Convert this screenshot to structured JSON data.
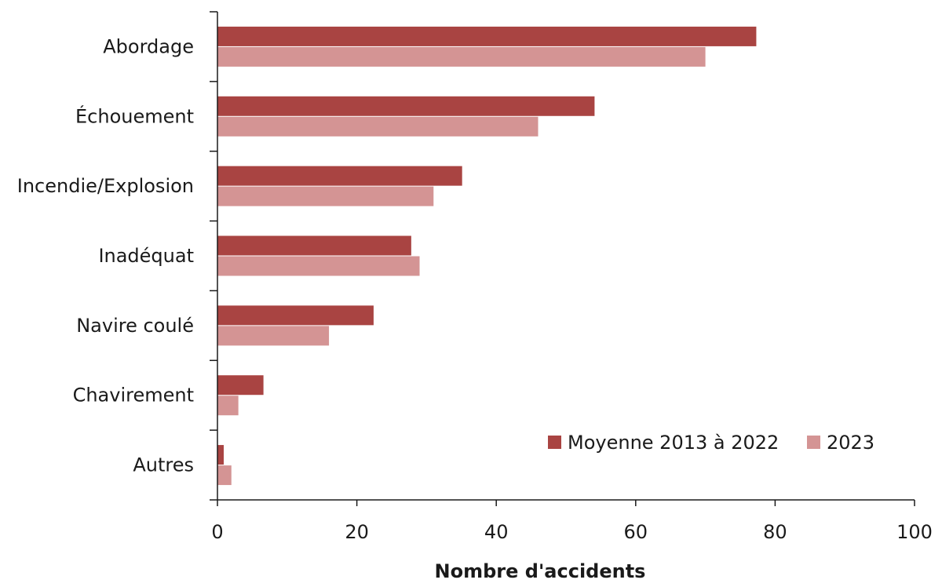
{
  "chart_data": {
    "type": "bar",
    "orientation": "horizontal",
    "categories": [
      "Abordage",
      "Échouement",
      "Incendie/Explosion",
      "Inadéquat",
      "Navire coulé",
      "Chavirement",
      "Autres"
    ],
    "series": [
      {
        "name": "Moyenne 2013 à 2022",
        "color": "#a94442",
        "values": [
          77.3,
          54.1,
          35.1,
          27.8,
          22.4,
          6.6,
          0.9
        ]
      },
      {
        "name": "2023",
        "color": "#d49494",
        "values": [
          70,
          46,
          31,
          29,
          16,
          3,
          2
        ]
      }
    ],
    "xlabel": "Nombre d'accidents",
    "ylabel": "",
    "xlim": [
      0,
      100
    ],
    "xticks": [
      0,
      20,
      40,
      60,
      80,
      100
    ],
    "xtick_labels": [
      "0",
      "20",
      "40",
      "60",
      "80",
      "100"
    ],
    "grid": false,
    "legend_position": "bottom-right"
  }
}
